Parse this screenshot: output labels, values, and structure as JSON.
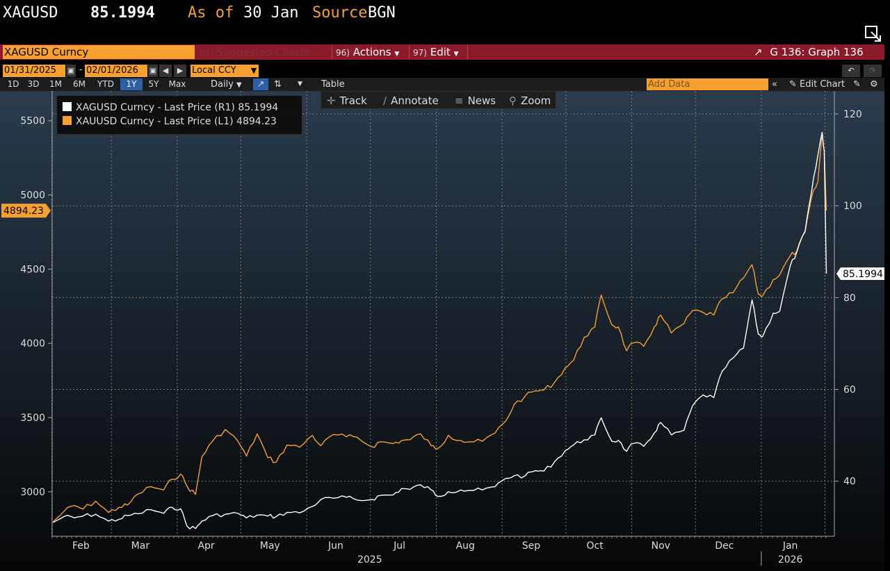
{
  "header": {
    "ticker": "XAGUSD",
    "price": "85.1994",
    "as_of_label": "As of",
    "as_of_value": "30 Jan",
    "source_label": "Source",
    "source_value": "BGN"
  },
  "menubar": {
    "security": "XAGUSD Curncy",
    "suggested_num": "94)",
    "suggested": "Suggested Charts",
    "actions_num": "96)",
    "actions": "Actions",
    "edit_num": "97)",
    "edit": "Edit",
    "graph": "G 136: Graph 136"
  },
  "datebar": {
    "start": "01/31/2025",
    "end": "02/01/2026",
    "currency": "Local CCY"
  },
  "rangebar": {
    "ranges": [
      "1D",
      "3D",
      "1M",
      "6M",
      "YTD",
      "1Y",
      "5Y",
      "Max"
    ],
    "active": "1Y",
    "frequency": "Daily",
    "table": "Table",
    "add_data": "Add Data",
    "edit_chart": "Edit Chart"
  },
  "tools": {
    "track": "Track",
    "annotate": "Annotate",
    "news": "News",
    "zoom": "Zoom"
  },
  "colors": {
    "silver": "#ffffff",
    "gold": "#f5a031",
    "grid": "#8a8a8a",
    "menubar": "#8b1a2b"
  },
  "chart_data": {
    "type": "line",
    "x_start": "2025-01-31",
    "x_end": "2026-01-30",
    "x_tick_labels": [
      "Feb",
      "Mar",
      "Apr",
      "May",
      "Jun",
      "Jul",
      "Aug",
      "Sep",
      "Oct",
      "Nov",
      "Dec",
      "Jan"
    ],
    "year_labels": [
      "2025",
      "2026"
    ],
    "left_axis": {
      "ticks": [
        3000,
        3500,
        4000,
        4500,
        5000,
        5500
      ],
      "range": [
        2700,
        5700
      ]
    },
    "right_axis": {
      "ticks": [
        40,
        60,
        80,
        100,
        120
      ],
      "range": [
        28,
        125
      ]
    },
    "grid": true,
    "legend_position": "top-left",
    "series": [
      {
        "name": "XAGUSD Curncy - Last Price (R1) 85.1994",
        "axis": "right",
        "last_label": "85.1994",
        "points": [
          [
            "2025-01-31",
            31.0
          ],
          [
            "2025-02-05",
            32.3
          ],
          [
            "2025-02-10",
            32.0
          ],
          [
            "2025-02-14",
            32.4
          ],
          [
            "2025-02-20",
            32.8
          ],
          [
            "2025-02-26",
            31.3
          ],
          [
            "2025-03-03",
            31.7
          ],
          [
            "2025-03-07",
            32.5
          ],
          [
            "2025-03-12",
            32.9
          ],
          [
            "2025-03-18",
            33.8
          ],
          [
            "2025-03-24",
            33.0
          ],
          [
            "2025-03-28",
            34.3
          ],
          [
            "2025-04-01",
            34.0
          ],
          [
            "2025-04-04",
            30.2
          ],
          [
            "2025-04-08",
            29.7
          ],
          [
            "2025-04-11",
            31.3
          ],
          [
            "2025-04-16",
            32.5
          ],
          [
            "2025-04-22",
            32.8
          ],
          [
            "2025-04-28",
            33.0
          ],
          [
            "2025-05-02",
            32.0
          ],
          [
            "2025-05-07",
            32.6
          ],
          [
            "2025-05-12",
            32.4
          ],
          [
            "2025-05-16",
            32.3
          ],
          [
            "2025-05-21",
            33.2
          ],
          [
            "2025-05-27",
            33.1
          ],
          [
            "2025-06-02",
            34.5
          ],
          [
            "2025-06-06",
            36.0
          ],
          [
            "2025-06-12",
            36.3
          ],
          [
            "2025-06-18",
            36.5
          ],
          [
            "2025-06-23",
            35.9
          ],
          [
            "2025-06-30",
            36.0
          ],
          [
            "2025-07-04",
            36.9
          ],
          [
            "2025-07-10",
            37.0
          ],
          [
            "2025-07-14",
            38.4
          ],
          [
            "2025-07-18",
            38.2
          ],
          [
            "2025-07-23",
            39.2
          ],
          [
            "2025-07-28",
            38.1
          ],
          [
            "2025-07-31",
            36.7
          ],
          [
            "2025-08-05",
            37.7
          ],
          [
            "2025-08-11",
            38.1
          ],
          [
            "2025-08-15",
            38.0
          ],
          [
            "2025-08-21",
            38.1
          ],
          [
            "2025-08-27",
            38.8
          ],
          [
            "2025-09-01",
            40.6
          ],
          [
            "2025-09-05",
            41.2
          ],
          [
            "2025-09-10",
            41.1
          ],
          [
            "2025-09-15",
            42.3
          ],
          [
            "2025-09-19",
            42.2
          ],
          [
            "2025-09-24",
            44.2
          ],
          [
            "2025-09-29",
            46.6
          ],
          [
            "2025-10-03",
            47.9
          ],
          [
            "2025-10-08",
            49.0
          ],
          [
            "2025-10-13",
            50.1
          ],
          [
            "2025-10-16",
            53.8
          ],
          [
            "2025-10-21",
            48.7
          ],
          [
            "2025-10-24",
            48.9
          ],
          [
            "2025-10-28",
            46.5
          ],
          [
            "2025-10-31",
            48.2
          ],
          [
            "2025-11-05",
            47.6
          ],
          [
            "2025-11-10",
            50.5
          ],
          [
            "2025-11-13",
            52.8
          ],
          [
            "2025-11-18",
            50.1
          ],
          [
            "2025-11-24",
            51.1
          ],
          [
            "2025-11-28",
            56.4
          ],
          [
            "2025-12-03",
            58.8
          ],
          [
            "2025-12-08",
            58.2
          ],
          [
            "2025-12-12",
            64.0
          ],
          [
            "2025-12-17",
            66.8
          ],
          [
            "2025-12-22",
            69.0
          ],
          [
            "2025-12-26",
            79.5
          ],
          [
            "2025-12-29",
            72.0
          ],
          [
            "2025-12-31",
            71.5
          ],
          [
            "2026-01-05",
            76.6
          ],
          [
            "2026-01-08",
            77.0
          ],
          [
            "2026-01-13",
            86.9
          ],
          [
            "2026-01-16",
            89.8
          ],
          [
            "2026-01-20",
            94.5
          ],
          [
            "2026-01-23",
            103.0
          ],
          [
            "2026-01-26",
            111.0
          ],
          [
            "2026-01-28",
            116.0
          ],
          [
            "2026-01-29",
            112.0
          ],
          [
            "2026-01-30",
            85.2
          ]
        ]
      },
      {
        "name": "XAUUSD Curncy - Last Price (L1) 4894.23",
        "axis": "left",
        "last_label": "4894.23",
        "points": [
          [
            "2025-01-31",
            2798
          ],
          [
            "2025-02-05",
            2867
          ],
          [
            "2025-02-10",
            2907
          ],
          [
            "2025-02-14",
            2883
          ],
          [
            "2025-02-20",
            2937
          ],
          [
            "2025-02-26",
            2860
          ],
          [
            "2025-03-03",
            2895
          ],
          [
            "2025-03-07",
            2910
          ],
          [
            "2025-03-12",
            2985
          ],
          [
            "2025-03-18",
            3034
          ],
          [
            "2025-03-24",
            3012
          ],
          [
            "2025-03-28",
            3085
          ],
          [
            "2025-04-01",
            3120
          ],
          [
            "2025-04-04",
            3037
          ],
          [
            "2025-04-08",
            2982
          ],
          [
            "2025-04-11",
            3237
          ],
          [
            "2025-04-16",
            3340
          ],
          [
            "2025-04-22",
            3420
          ],
          [
            "2025-04-28",
            3340
          ],
          [
            "2025-05-02",
            3240
          ],
          [
            "2025-05-07",
            3390
          ],
          [
            "2025-05-12",
            3230
          ],
          [
            "2025-05-16",
            3200
          ],
          [
            "2025-05-21",
            3315
          ],
          [
            "2025-05-27",
            3300
          ],
          [
            "2025-06-02",
            3380
          ],
          [
            "2025-06-06",
            3310
          ],
          [
            "2025-06-12",
            3386
          ],
          [
            "2025-06-18",
            3370
          ],
          [
            "2025-06-23",
            3368
          ],
          [
            "2025-06-30",
            3303
          ],
          [
            "2025-07-04",
            3337
          ],
          [
            "2025-07-10",
            3325
          ],
          [
            "2025-07-14",
            3345
          ],
          [
            "2025-07-18",
            3350
          ],
          [
            "2025-07-23",
            3390
          ],
          [
            "2025-07-28",
            3310
          ],
          [
            "2025-07-31",
            3290
          ],
          [
            "2025-08-05",
            3380
          ],
          [
            "2025-08-11",
            3345
          ],
          [
            "2025-08-15",
            3336
          ],
          [
            "2025-08-21",
            3340
          ],
          [
            "2025-08-27",
            3395
          ],
          [
            "2025-09-01",
            3476
          ],
          [
            "2025-09-05",
            3587
          ],
          [
            "2025-09-10",
            3641
          ],
          [
            "2025-09-15",
            3680
          ],
          [
            "2025-09-19",
            3685
          ],
          [
            "2025-09-24",
            3736
          ],
          [
            "2025-09-29",
            3833
          ],
          [
            "2025-10-03",
            3886
          ],
          [
            "2025-10-08",
            4040
          ],
          [
            "2025-10-13",
            4110
          ],
          [
            "2025-10-16",
            4326
          ],
          [
            "2025-10-21",
            4125
          ],
          [
            "2025-10-24",
            4111
          ],
          [
            "2025-10-28",
            3950
          ],
          [
            "2025-10-31",
            4002
          ],
          [
            "2025-11-05",
            3980
          ],
          [
            "2025-11-10",
            4110
          ],
          [
            "2025-11-13",
            4190
          ],
          [
            "2025-11-18",
            4070
          ],
          [
            "2025-11-24",
            4135
          ],
          [
            "2025-11-28",
            4220
          ],
          [
            "2025-12-03",
            4208
          ],
          [
            "2025-12-08",
            4190
          ],
          [
            "2025-12-12",
            4300
          ],
          [
            "2025-12-17",
            4340
          ],
          [
            "2025-12-22",
            4440
          ],
          [
            "2025-12-26",
            4530
          ],
          [
            "2025-12-29",
            4330
          ],
          [
            "2025-12-31",
            4320
          ],
          [
            "2026-01-05",
            4430
          ],
          [
            "2026-01-08",
            4460
          ],
          [
            "2026-01-13",
            4590
          ],
          [
            "2026-01-16",
            4620
          ],
          [
            "2026-01-20",
            4750
          ],
          [
            "2026-01-23",
            4980
          ],
          [
            "2026-01-26",
            5090
          ],
          [
            "2026-01-28",
            5410
          ],
          [
            "2026-01-29",
            5300
          ],
          [
            "2026-01-30",
            4894
          ]
        ]
      }
    ]
  }
}
